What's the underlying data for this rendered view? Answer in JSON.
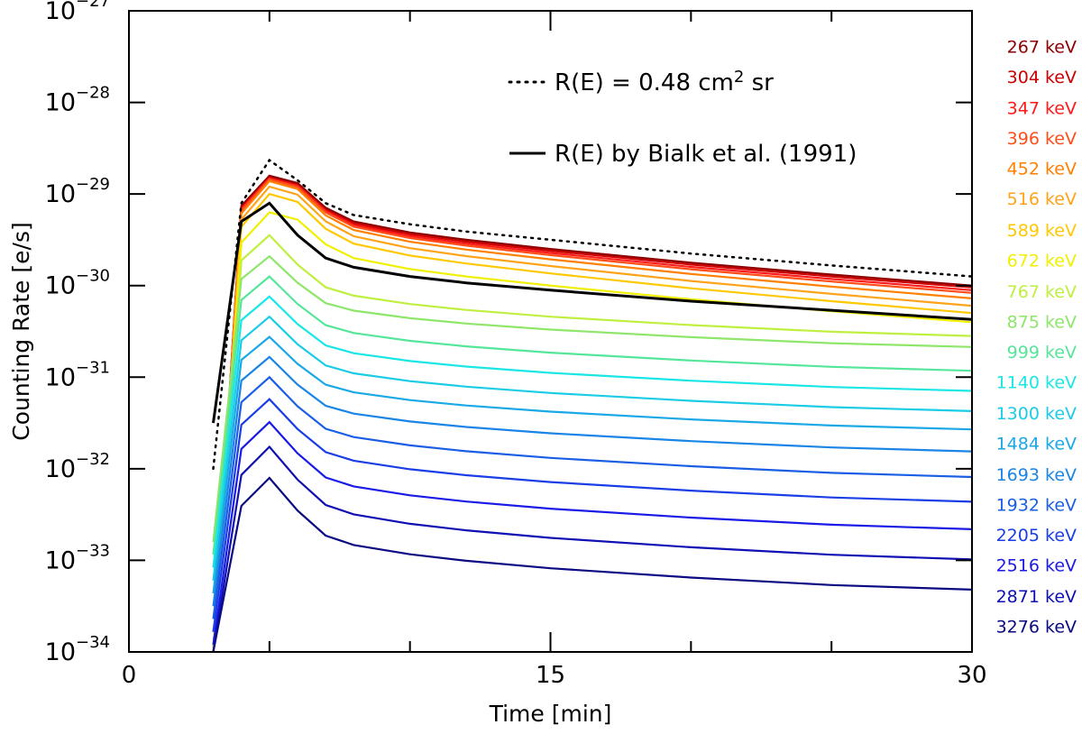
{
  "chart_data": {
    "type": "line",
    "xlabel": "Time [min]",
    "ylabel": "Counting Rate [e/s]",
    "xlim": [
      0,
      30
    ],
    "ylim_log10": [
      -34,
      -27
    ],
    "x_ticks": [
      {
        "value": 0,
        "label": "0"
      },
      {
        "value": 15,
        "label": "15"
      },
      {
        "value": 30,
        "label": "30"
      }
    ],
    "x_minor_step": 5,
    "y_ticks": [
      {
        "exp": -27,
        "base": "10",
        "sup": "−27"
      },
      {
        "exp": -28,
        "base": "10",
        "sup": "−28"
      },
      {
        "exp": -29,
        "base": "10",
        "sup": "−29"
      },
      {
        "exp": -30,
        "base": "10",
        "sup": "−30"
      },
      {
        "exp": -31,
        "base": "10",
        "sup": "−31"
      },
      {
        "exp": -32,
        "base": "10",
        "sup": "−32"
      },
      {
        "exp": -33,
        "base": "10",
        "sup": "−33"
      },
      {
        "exp": -34,
        "base": "10",
        "sup": "−34"
      }
    ],
    "legend": [
      {
        "style": "dotted",
        "prefix": "R(E) = 0.48 cm",
        "sup": "2",
        "suffix": " sr"
      },
      {
        "style": "solid",
        "prefix": "R(E) by Bialk et al. (1991)",
        "sup": "",
        "suffix": ""
      }
    ],
    "x": [
      3,
      4,
      5,
      6,
      7,
      8,
      10,
      12,
      15,
      20,
      25,
      30
    ],
    "series": [
      {
        "name": "267 keV",
        "color": "#8b0000",
        "shape": "A",
        "peak_log10": -28.8,
        "end_log10": -30.0,
        "label_log10": -27.39
      },
      {
        "name": "304 keV",
        "color": "#cc0000",
        "shape": "A",
        "peak_log10": -28.82,
        "end_log10": -30.02,
        "label_log10": -27.72
      },
      {
        "name": "347 keV",
        "color": "#ff1a1a",
        "shape": "A",
        "peak_log10": -28.83,
        "end_log10": -30.05,
        "label_log10": -28.06
      },
      {
        "name": "396 keV",
        "color": "#ff4d1a",
        "shape": "A",
        "peak_log10": -28.84,
        "end_log10": -30.08,
        "label_log10": -28.39
      },
      {
        "name": "452 keV",
        "color": "#ff8000",
        "shape": "A",
        "peak_log10": -28.86,
        "end_log10": -30.14,
        "label_log10": -28.72
      },
      {
        "name": "516 keV",
        "color": "#ffa31a",
        "shape": "A",
        "peak_log10": -28.92,
        "end_log10": -30.22,
        "label_log10": -29.05
      },
      {
        "name": "589 keV",
        "color": "#ffc800",
        "shape": "A",
        "peak_log10": -29.0,
        "end_log10": -30.3,
        "label_log10": -29.39
      },
      {
        "name": "672 keV",
        "color": "#f0f000",
        "shape": "A",
        "peak_log10": -29.2,
        "end_log10": -30.4,
        "label_log10": -29.72
      },
      {
        "name": "767 keV",
        "color": "#bff040",
        "shape": "B",
        "peak_log10": -29.45,
        "end_log10": -30.55,
        "label_log10": -30.06
      },
      {
        "name": "875 keV",
        "color": "#8ee66a",
        "shape": "B",
        "peak_log10": -29.68,
        "end_log10": -30.67,
        "label_log10": -30.39
      },
      {
        "name": "999 keV",
        "color": "#55e69a",
        "shape": "B",
        "peak_log10": -29.9,
        "end_log10": -30.93,
        "label_log10": -30.72
      },
      {
        "name": "1140 keV",
        "color": "#1ae6e6",
        "shape": "B",
        "peak_log10": -30.12,
        "end_log10": -31.15,
        "label_log10": -31.05
      },
      {
        "name": "1300 keV",
        "color": "#1acce6",
        "shape": "B",
        "peak_log10": -30.34,
        "end_log10": -31.37,
        "label_log10": -31.39
      },
      {
        "name": "1484 keV",
        "color": "#1aa8e6",
        "shape": "B",
        "peak_log10": -30.56,
        "end_log10": -31.57,
        "label_log10": -31.72
      },
      {
        "name": "1693 keV",
        "color": "#1a85e6",
        "shape": "B",
        "peak_log10": -30.78,
        "end_log10": -31.81,
        "label_log10": -32.06
      },
      {
        "name": "1932 keV",
        "color": "#1a5ee6",
        "shape": "B",
        "peak_log10": -31.0,
        "end_log10": -32.09,
        "label_log10": -32.39
      },
      {
        "name": "2205 keV",
        "color": "#1a3ee6",
        "shape": "B",
        "peak_log10": -31.24,
        "end_log10": -32.36,
        "label_log10": -32.72
      },
      {
        "name": "2516 keV",
        "color": "#1a1ae6",
        "shape": "B",
        "peak_log10": -31.49,
        "end_log10": -32.66,
        "label_log10": -33.05
      },
      {
        "name": "2871 keV",
        "color": "#0f0fb4",
        "shape": "B",
        "peak_log10": -31.76,
        "end_log10": -32.99,
        "label_log10": -33.39
      },
      {
        "name": "3276 keV",
        "color": "#0a0a82",
        "shape": "B",
        "peak_log10": -32.1,
        "end_log10": -33.32,
        "label_log10": -33.72
      }
    ],
    "bialk_curve": {
      "name": "R(E) by Bialk et al. (1991)",
      "color": "#000000",
      "x": [
        3,
        4,
        5,
        6,
        7,
        8,
        10,
        12,
        15,
        20,
        25,
        30
      ],
      "y_log10": [
        -31.5,
        -29.3,
        -29.1,
        -29.45,
        -29.7,
        -29.8,
        -29.9,
        -29.97,
        -30.05,
        -30.17,
        -30.27,
        -30.37
      ]
    },
    "dotted_curve": {
      "name": "R(E) = 0.48 cm2 sr",
      "color": "#000000",
      "x": [
        3,
        4,
        5,
        6,
        7,
        8,
        10,
        12,
        15,
        20,
        25,
        30
      ],
      "y_log10": [
        -32,
        -29.1,
        -28.63,
        -28.85,
        -29.1,
        -29.23,
        -29.33,
        -29.41,
        -29.5,
        -29.65,
        -29.78,
        -29.9
      ]
    }
  }
}
